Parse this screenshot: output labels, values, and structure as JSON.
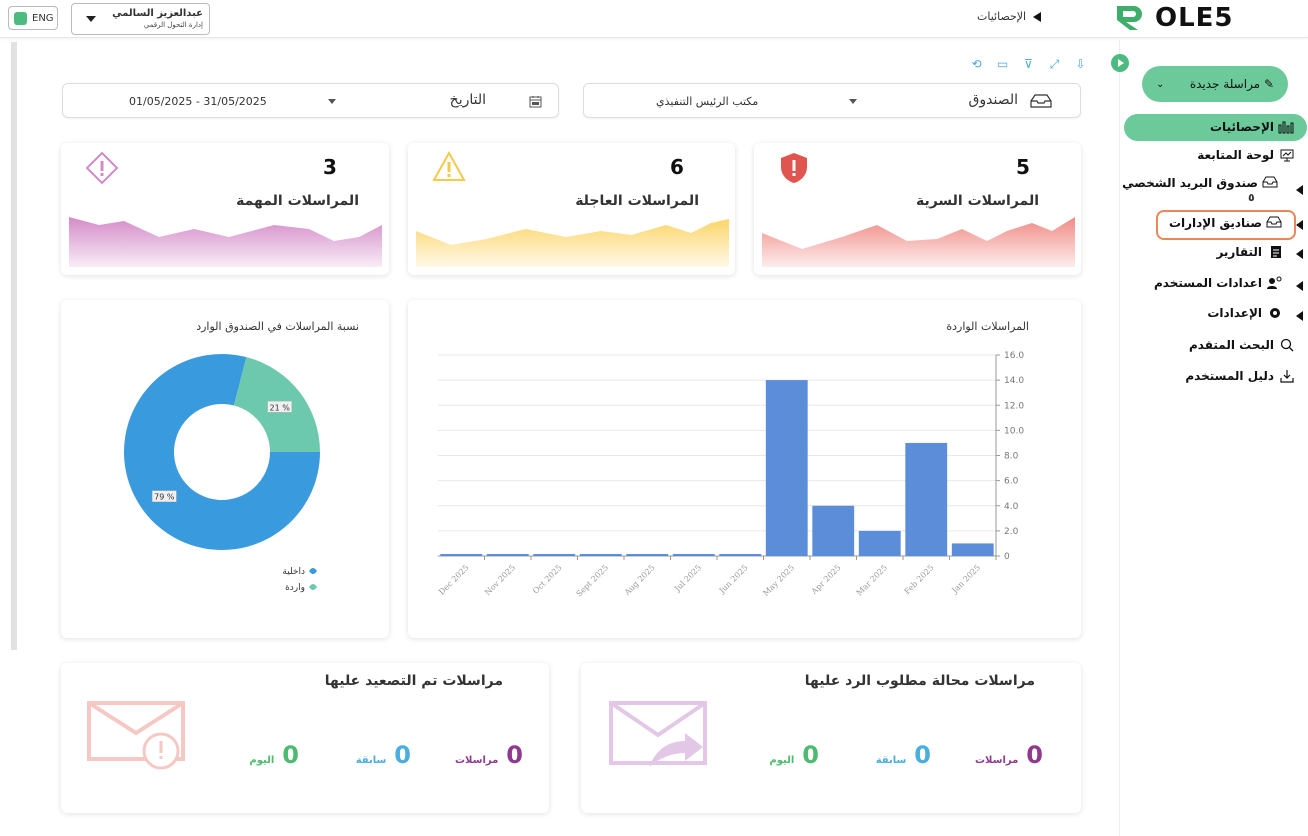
{
  "topbar": {
    "lang": "ENG",
    "user_name": "عبدالعزيز السالمي",
    "user_role": "إدارة التحول الرقمي",
    "breadcrumb": "الإحصائيات",
    "logo_text": "OLE5"
  },
  "sidebar": {
    "new_message": "مراسلة جديدة",
    "items": [
      {
        "label": "الإحصائيات",
        "icon": "bar-chart-icon"
      },
      {
        "label": "لوحة المتابعة",
        "icon": "monitor-icon"
      },
      {
        "label": "صندوق البريد الشخصي",
        "sub": "٥",
        "icon": "inbox-icon"
      },
      {
        "label": "صناديق الإدارات",
        "icon": "inbox-icon"
      },
      {
        "label": "التقارير",
        "icon": "report-icon"
      },
      {
        "label": "اعدادات المستخدم",
        "icon": "user-gear-icon"
      },
      {
        "label": "الإعدادات",
        "icon": "gear-icon"
      },
      {
        "label": "البحث المتقدم",
        "icon": "search-icon"
      },
      {
        "label": "دليل المستخدم",
        "icon": "download-icon"
      }
    ]
  },
  "filters": {
    "box_label": "الصندوق",
    "box_value": "مكتب الرئيس التنفيذي",
    "date_label": "التاريخ",
    "date_value": "01/05/2025 - 31/05/2025"
  },
  "stats": [
    {
      "title": "المراسلات السرية",
      "value": "5",
      "color": "#f08a84"
    },
    {
      "title": "المراسلات العاجلة",
      "value": "6",
      "color": "#fcd56a"
    },
    {
      "title": "المراسلات المهمة",
      "value": "3",
      "color": "#d48ac8"
    }
  ],
  "chart_data": [
    {
      "type": "bar",
      "title": "المراسلات الواردة",
      "categories": [
        "Jan 2025",
        "Feb 2025",
        "Mar 2025",
        "Apr 2025",
        "May 2025",
        "Jun 2025",
        "Jul 2025",
        "Aug 2025",
        "Sept 2025",
        "Oct 2025",
        "Nov 2025",
        "Dec 2025"
      ],
      "values": [
        1,
        9,
        2,
        4,
        14,
        0,
        0,
        0,
        0,
        0,
        0,
        0
      ],
      "ylim": [
        0,
        16
      ],
      "yticks": [
        "0",
        "2.0",
        "4.0",
        "6.0",
        "8.0",
        "10.0",
        "12.0",
        "14.0",
        "16.0"
      ],
      "color": "#5b8dd9"
    },
    {
      "type": "pie",
      "title": "نسبة المراسلات في الصندوق الوارد",
      "labels": [
        "داخلية",
        "واردة"
      ],
      "values": [
        79,
        21
      ],
      "value_labels": [
        "79 %",
        "21 %"
      ],
      "colors": [
        "#3a9ade",
        "#6cc9ad"
      ]
    }
  ],
  "bottom": [
    {
      "title": "مراسلات محالة مطلوب الرد عليها",
      "metrics": [
        {
          "value": "0",
          "label": "مراسلات",
          "color": "#8e3a8e"
        },
        {
          "value": "0",
          "label": "سابقة",
          "color": "#4aaede"
        },
        {
          "value": "0",
          "label": "اليوم",
          "color": "#4cbb6f"
        }
      ]
    },
    {
      "title": "مراسلات تم التصعيد عليها",
      "metrics": [
        {
          "value": "0",
          "label": "مراسلات",
          "color": "#8e3a8e"
        },
        {
          "value": "0",
          "label": "سابقة",
          "color": "#4aaede"
        },
        {
          "value": "0",
          "label": "اليوم",
          "color": "#4cbb6f"
        }
      ]
    }
  ]
}
